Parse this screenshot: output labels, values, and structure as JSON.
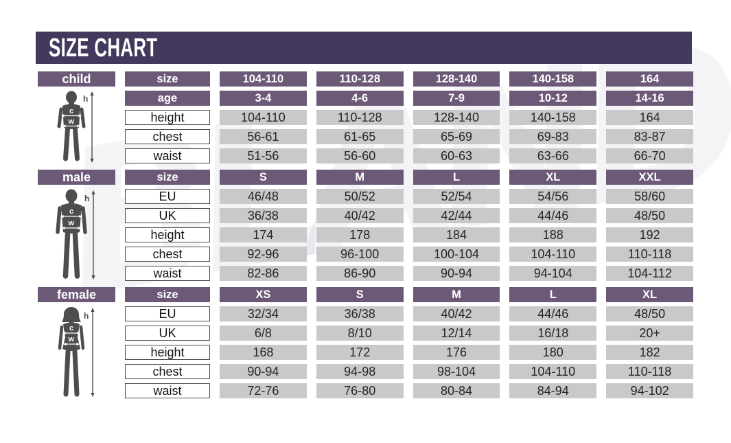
{
  "title": "SIZE CHART",
  "watermark_text": "BLAND",
  "colors": {
    "banner": "#42395d",
    "header_box": "#6c5977",
    "value_box": "#c9c8ca",
    "label_box_border": "#4a4a4a",
    "silhouette": "#4d4d4f",
    "text_dark": "#262626",
    "white": "#ffffff"
  },
  "figure_annotations": {
    "height_label": "h",
    "chest_label": "c",
    "waist_label": "w"
  },
  "chart_data": [
    {
      "type": "table",
      "section_label": "child",
      "figure": "child",
      "rows": [
        {
          "label": "size",
          "style": "header",
          "values": [
            "104-110",
            "110-128",
            "128-140",
            "140-158",
            "164"
          ]
        },
        {
          "label": "age",
          "style": "header",
          "values": [
            "3-4",
            "4-6",
            "7-9",
            "10-12",
            "14-16"
          ]
        },
        {
          "label": "height",
          "style": "data",
          "values": [
            "104-110",
            "110-128",
            "128-140",
            "140-158",
            "164"
          ]
        },
        {
          "label": "chest",
          "style": "data",
          "values": [
            "56-61",
            "61-65",
            "65-69",
            "69-83",
            "83-87"
          ]
        },
        {
          "label": "waist",
          "style": "data",
          "values": [
            "51-56",
            "56-60",
            "60-63",
            "63-66",
            "66-70"
          ]
        }
      ]
    },
    {
      "type": "table",
      "section_label": "male",
      "figure": "male",
      "rows": [
        {
          "label": "size",
          "style": "header",
          "values": [
            "S",
            "M",
            "L",
            "XL",
            "XXL"
          ]
        },
        {
          "label": "EU",
          "style": "data",
          "values": [
            "46/48",
            "50/52",
            "52/54",
            "54/56",
            "58/60"
          ]
        },
        {
          "label": "UK",
          "style": "data",
          "values": [
            "36/38",
            "40/42",
            "42/44",
            "44/46",
            "48/50"
          ]
        },
        {
          "label": "height",
          "style": "data",
          "values": [
            "174",
            "178",
            "184",
            "188",
            "192"
          ]
        },
        {
          "label": "chest",
          "style": "data",
          "values": [
            "92-96",
            "96-100",
            "100-104",
            "104-110",
            "110-118"
          ]
        },
        {
          "label": "waist",
          "style": "data",
          "values": [
            "82-86",
            "86-90",
            "90-94",
            "94-104",
            "104-112"
          ]
        }
      ]
    },
    {
      "type": "table",
      "section_label": "female",
      "figure": "female",
      "rows": [
        {
          "label": "size",
          "style": "header",
          "values": [
            "XS",
            "S",
            "M",
            "L",
            "XL"
          ]
        },
        {
          "label": "EU",
          "style": "data",
          "values": [
            "32/34",
            "36/38",
            "40/42",
            "44/46",
            "48/50"
          ]
        },
        {
          "label": "UK",
          "style": "data",
          "values": [
            "6/8",
            "8/10",
            "12/14",
            "16/18",
            "20+"
          ]
        },
        {
          "label": "height",
          "style": "data",
          "values": [
            "168",
            "172",
            "176",
            "180",
            "182"
          ]
        },
        {
          "label": "chest",
          "style": "data",
          "values": [
            "90-94",
            "94-98",
            "98-104",
            "104-110",
            "110-118"
          ]
        },
        {
          "label": "waist",
          "style": "data",
          "values": [
            "72-76",
            "76-80",
            "80-84",
            "84-94",
            "94-102"
          ]
        }
      ]
    }
  ]
}
